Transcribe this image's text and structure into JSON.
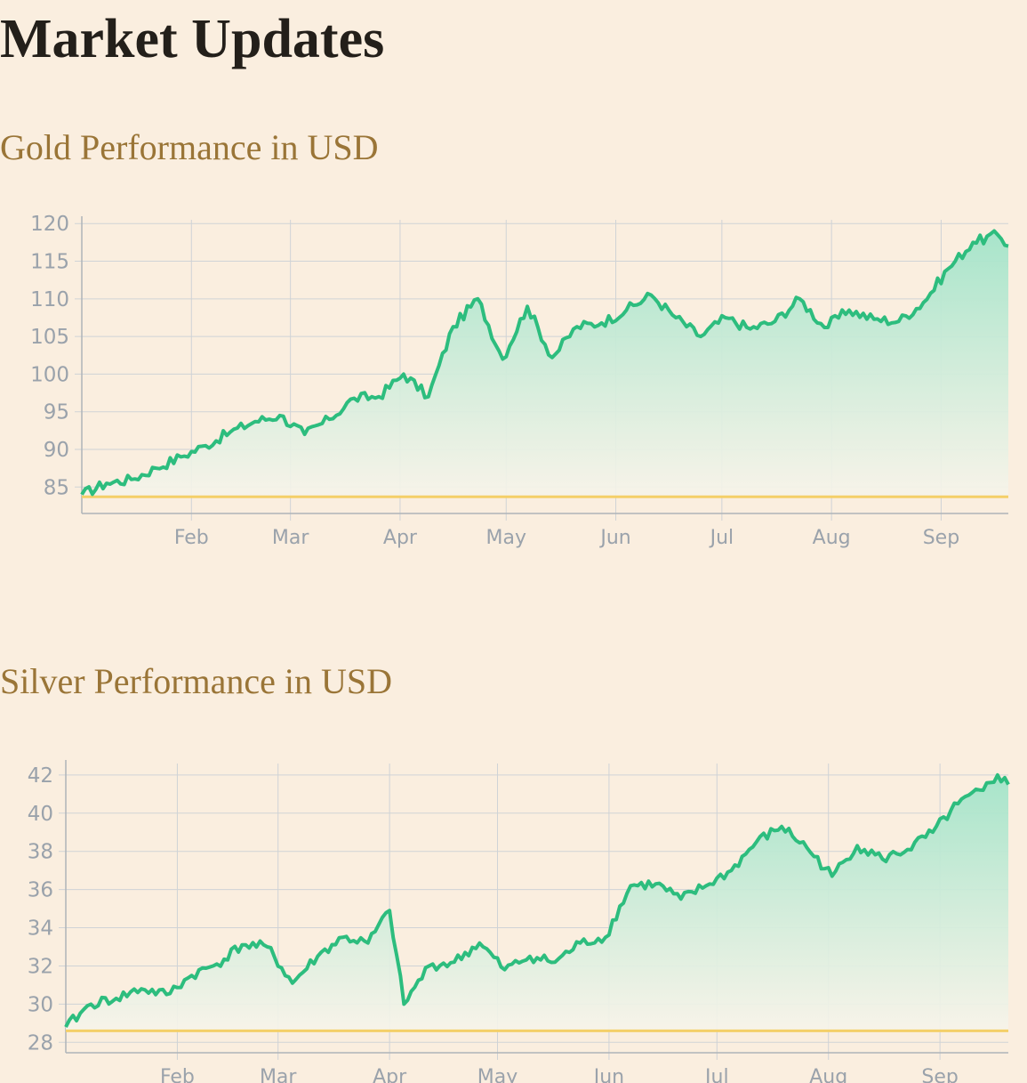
{
  "header": {
    "title": "Market Updates"
  },
  "sections": {
    "gold": {
      "title": "Gold Performance in USD"
    },
    "silver": {
      "title": "Silver Performance in USD"
    }
  },
  "colors": {
    "line": "#2dbd7e",
    "area_top": "#a3e4c9",
    "area_bottom": "#f7f4ea",
    "baseline": "#f4cf68",
    "grid": "#cfd3d6",
    "axis": "#aeb4b9"
  },
  "chart_data": [
    {
      "type": "area",
      "title": "Gold Performance in USD",
      "xlabel": "",
      "ylabel": "",
      "grid": true,
      "x_ticks": [
        "Feb",
        "Mar",
        "Apr",
        "May",
        "Jun",
        "Jul",
        "Aug",
        "Sep"
      ],
      "y_ticks": [
        85,
        90,
        95,
        100,
        105,
        110,
        115,
        120
      ],
      "xlim": [
        "Jan 1",
        "Sep 20"
      ],
      "ylim": [
        82.5,
        120.5
      ],
      "baseline": 83.7,
      "x": [
        "Jan 1",
        "Jan 8",
        "Jan 15",
        "Jan 22",
        "Jan 29",
        "Feb 5",
        "Feb 12",
        "Feb 19",
        "Feb 26",
        "Mar 5",
        "Mar 12",
        "Mar 19",
        "Mar 26",
        "Apr 2",
        "Apr 9",
        "Apr 16",
        "Apr 23",
        "Apr 30",
        "May 7",
        "May 14",
        "May 21",
        "May 28",
        "Jun 4",
        "Jun 11",
        "Jun 18",
        "Jun 25",
        "Jul 2",
        "Jul 9",
        "Jul 16",
        "Jul 23",
        "Jul 30",
        "Aug 6",
        "Aug 13",
        "Aug 20",
        "Aug 27",
        "Sep 3",
        "Sep 10",
        "Sep 17",
        "Sep 20"
      ],
      "series": [
        {
          "values": [
            84.0,
            85.5,
            86.0,
            87.5,
            89.0,
            90.5,
            92.3,
            93.7,
            94.5,
            92.0,
            94.0,
            96.8,
            97.0,
            100.0,
            97.0,
            106.3,
            110.0,
            102.0,
            109.0,
            102.2,
            106.3,
            106.8,
            108.5,
            110.5,
            107.5,
            105.0,
            107.5,
            106.0,
            107.0,
            110.0,
            106.2,
            108.5,
            107.3,
            107.0,
            109.5,
            114.0,
            117.5,
            118.5,
            117.0
          ]
        }
      ]
    },
    {
      "type": "area",
      "title": "Silver Performance in USD",
      "xlabel": "",
      "ylabel": "",
      "grid": true,
      "x_ticks": [
        "Feb",
        "Mar",
        "Apr",
        "May",
        "Jun",
        "Jul",
        "Aug",
        "Sep"
      ],
      "y_ticks": [
        28,
        30,
        32,
        34,
        36,
        38,
        40,
        42
      ],
      "xlim": [
        "Jan 1",
        "Sep 20"
      ],
      "ylim": [
        27.7,
        42.6
      ],
      "baseline": 28.6,
      "x": [
        "Jan 1",
        "Jan 8",
        "Jan 15",
        "Jan 22",
        "Jan 29",
        "Feb 5",
        "Feb 12",
        "Feb 19",
        "Feb 26",
        "Mar 5",
        "Mar 12",
        "Mar 19",
        "Mar 26",
        "Apr 1",
        "Apr 5",
        "Apr 12",
        "Apr 19",
        "Apr 26",
        "May 3",
        "May 10",
        "May 17",
        "May 24",
        "May 31",
        "Jun 7",
        "Jun 14",
        "Jun 21",
        "Jun 28",
        "Jul 5",
        "Jul 12",
        "Jul 19",
        "Jul 26",
        "Aug 2",
        "Aug 9",
        "Aug 16",
        "Aug 23",
        "Aug 30",
        "Sep 6",
        "Sep 13",
        "Sep 17",
        "Sep 20"
      ],
      "series": [
        {
          "values": [
            28.8,
            30.0,
            30.3,
            30.8,
            30.5,
            31.5,
            32.1,
            33.1,
            33.0,
            31.1,
            32.5,
            33.5,
            33.2,
            34.9,
            30.0,
            32.0,
            32.2,
            33.2,
            31.8,
            32.5,
            32.2,
            33.2,
            33.5,
            36.2,
            36.3,
            35.5,
            36.2,
            37.0,
            38.5,
            39.3,
            38.2,
            36.7,
            38.3,
            37.6,
            38.1,
            39.0,
            40.5,
            41.2,
            42.0,
            41.5
          ]
        }
      ]
    }
  ]
}
